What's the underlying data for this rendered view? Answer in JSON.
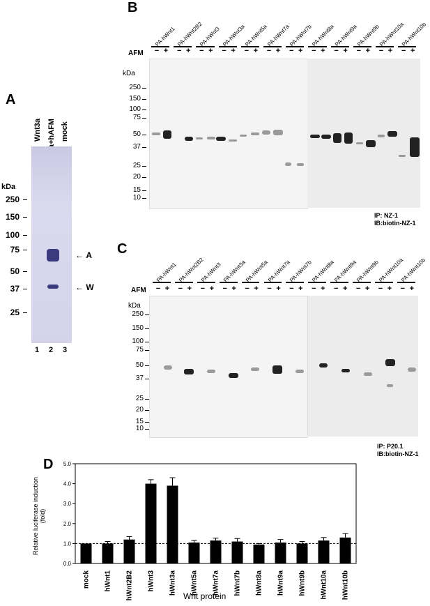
{
  "panelA": {
    "letter": "A",
    "lanes": [
      "Wnt3a",
      "Wnt3a+hAFM",
      "mock"
    ],
    "kda": "kDa",
    "markers": [
      "250",
      "150",
      "100",
      "75",
      "50",
      "37",
      "25"
    ],
    "arrows": [
      "A",
      "W"
    ],
    "lane_numbers": [
      "1",
      "2",
      "3"
    ]
  },
  "panelB": {
    "letter": "B",
    "afm": "AFM",
    "kda": "kDa",
    "groups": [
      "PA-hWnt1",
      "PA-hWnt2B2",
      "PA-hWnt3",
      "PA-hWnt3a",
      "PA-hWnt5a",
      "PA-hWnt7a",
      "PA-hWnt7b",
      "PA-hWnt8a",
      "PA-hWnt9a",
      "PA-hWnt9b",
      "PA-hWnt10a",
      "PA-hWnt10b"
    ],
    "markers": [
      "250",
      "150",
      "100",
      "75",
      "50",
      "37",
      "25",
      "20",
      "15",
      "10"
    ],
    "minus": "−",
    "plus": "+",
    "ip": "IP: NZ-1",
    "ib": "IB:biotin-NZ-1"
  },
  "panelC": {
    "letter": "C",
    "afm": "AFM",
    "kda": "kDa",
    "groups": [
      "PA-hWnt1",
      "PA-hWnt2B2",
      "PA-hWnt3",
      "PA-hWnt3a",
      "PA-hWnt5a",
      "PA-hWnt7a",
      "PA-hWnt7b",
      "PA-hWnt8a",
      "PA-hWnt9a",
      "PA-hWnt9b",
      "PA-hWnt10a",
      "PA-hWnt10b"
    ],
    "markers": [
      "250",
      "150",
      "100",
      "75",
      "50",
      "37",
      "25",
      "20",
      "15",
      "10"
    ],
    "minus": "−",
    "plus": "+",
    "ip": "IP: P20.1",
    "ib": "IB:biotin-NZ-1"
  },
  "panelD": {
    "letter": "D"
  },
  "chart_data": {
    "type": "bar",
    "categories": [
      "mock",
      "hWnt1",
      "hWnt2B2",
      "hWnt3",
      "hWnt3a",
      "hWnt5a",
      "hWnt7a",
      "hWnt7b",
      "hWnt8a",
      "hWnt9a",
      "hWnt9b",
      "hWnt10a",
      "hWnt10b"
    ],
    "values": [
      1.0,
      1.0,
      1.2,
      4.0,
      3.9,
      1.05,
      1.15,
      1.1,
      0.95,
      1.05,
      1.0,
      1.15,
      1.3
    ],
    "errors": [
      0.0,
      0.1,
      0.15,
      0.2,
      0.4,
      0.1,
      0.12,
      0.15,
      0.05,
      0.15,
      0.1,
      0.15,
      0.2
    ],
    "xlabel": "Wnt protein",
    "ylabel": "Relative luciferase induction (fold)",
    "ylim": [
      0,
      5.0
    ],
    "yticks": [
      "0.0",
      "1.0",
      "2.0",
      "3.0",
      "4.0",
      "5.0"
    ],
    "reference_line": 1.0,
    "grid": false
  }
}
